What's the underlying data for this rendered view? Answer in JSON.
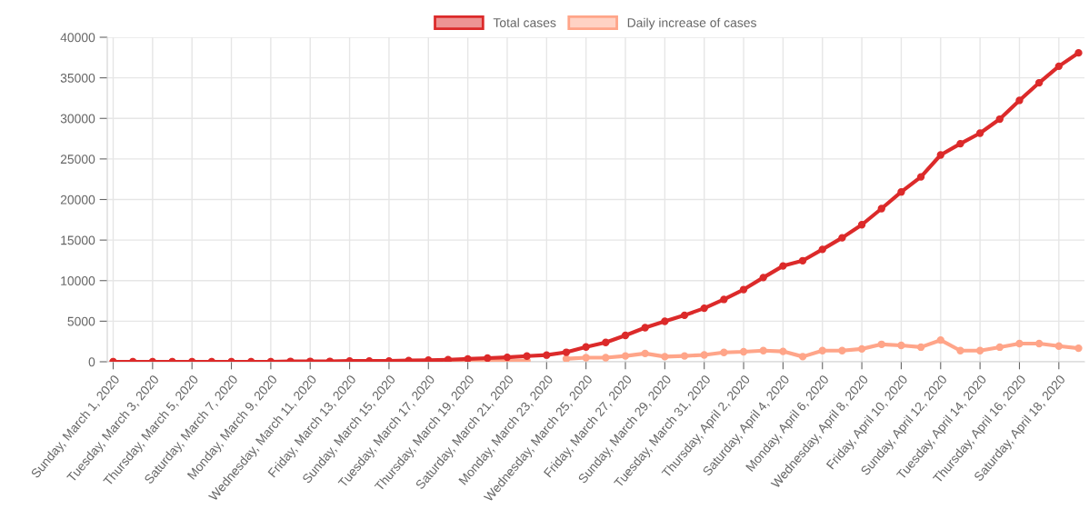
{
  "chart_data": {
    "type": "line",
    "categories": [
      "Sunday, March 1, 2020",
      null,
      "Tuesday, March 3, 2020",
      null,
      "Thursday, March 5, 2020",
      null,
      "Saturday, March 7, 2020",
      null,
      "Monday, March 9, 2020",
      null,
      "Wednesday, March 11, 2020",
      null,
      "Friday, March 13, 2020",
      null,
      "Sunday, March 15, 2020",
      null,
      "Tuesday, March 17, 2020",
      null,
      "Thursday, March 19, 2020",
      null,
      "Saturday, March 21, 2020",
      null,
      "Monday, March 23, 2020",
      null,
      "Wednesday, March 25, 2020",
      null,
      "Friday, March 27, 2020",
      null,
      "Sunday, March 29, 2020",
      null,
      "Tuesday, March 31, 2020",
      null,
      "Thursday, April 2, 2020",
      null,
      "Saturday, April 4, 2020",
      null,
      "Monday, April 6, 2020",
      null,
      "Wednesday, April 8, 2020",
      null,
      "Friday, April 10, 2020",
      null,
      "Sunday, April 12, 2020",
      null,
      "Tuesday, April 14, 2020",
      null,
      "Thursday, April 16, 2020",
      null,
      "Saturday, April 18, 2020",
      null
    ],
    "series": [
      {
        "name": "Total cases",
        "color": "#dc2a2a",
        "values": [
          0,
          0,
          0,
          0,
          0,
          0,
          0,
          0,
          0,
          50,
          50,
          50,
          100,
          100,
          100,
          150,
          200,
          250,
          350,
          450,
          550,
          700,
          820,
          1170,
          1820,
          2380,
          3250,
          4200,
          4990,
          5730,
          6600,
          7680,
          8900,
          10380,
          11810,
          12460,
          13850,
          15280,
          16890,
          18880,
          20930,
          22790,
          25490,
          26880,
          28180,
          29910,
          32220,
          34390,
          36430,
          38080
        ]
      },
      {
        "name": "Daily increase of cases",
        "color": "#ffa589",
        "values": [
          0,
          0,
          0,
          0,
          0,
          0,
          0,
          0,
          0,
          null,
          0,
          0,
          null,
          0,
          0,
          50,
          50,
          50,
          100,
          100,
          100,
          150,
          null,
          370,
          500,
          500,
          720,
          1020,
          630,
          720,
          840,
          1150,
          1230,
          1370,
          1280,
          630,
          1370,
          1370,
          1580,
          2150,
          2020,
          1800,
          2670,
          1370,
          1370,
          1800,
          2240,
          2240,
          1930,
          1670
        ]
      }
    ],
    "ylim": [
      0,
      40000
    ],
    "yticks": [
      0,
      5000,
      10000,
      15000,
      20000,
      25000,
      30000,
      35000,
      40000
    ],
    "grid": true,
    "legend": "top",
    "marker": "circle",
    "line_style": "solid"
  }
}
